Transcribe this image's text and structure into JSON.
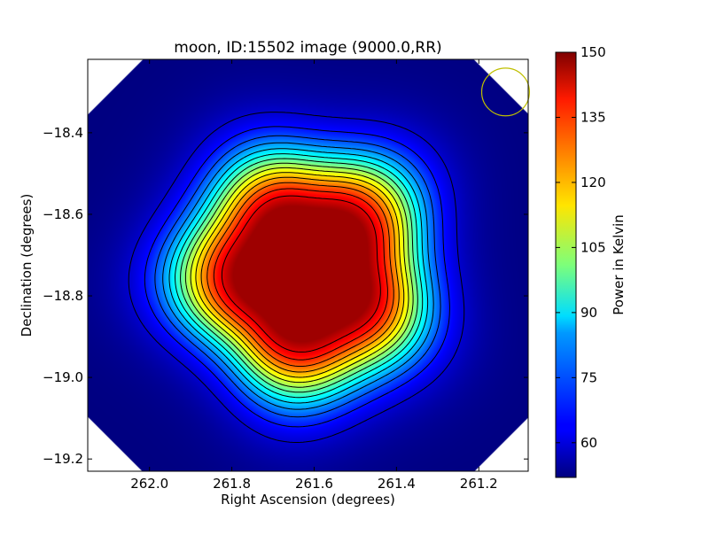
{
  "chart_data": {
    "type": "heatmap",
    "title": "moon, ID:15502 image (9000.0,RR)",
    "xlabel": "Right Ascension (degrees)",
    "ylabel": "Declination (degrees)",
    "colorbar_label": "Power in Kelvin",
    "xlim": [
      262.15,
      261.08
    ],
    "ylim": [
      -19.23,
      -18.22
    ],
    "x_inverted": true,
    "x_ticks": [
      {
        "value": 262.0,
        "label": "262.0"
      },
      {
        "value": 261.8,
        "label": "261.8"
      },
      {
        "value": 261.6,
        "label": "261.6"
      },
      {
        "value": 261.4,
        "label": "261.4"
      },
      {
        "value": 261.2,
        "label": "261.2"
      }
    ],
    "y_ticks": [
      {
        "value": -18.4,
        "label": "−18.4"
      },
      {
        "value": -18.6,
        "label": "−18.6"
      },
      {
        "value": -18.8,
        "label": "−18.8"
      },
      {
        "value": -19.0,
        "label": "−19.0"
      },
      {
        "value": -19.2,
        "label": "−19.2"
      }
    ],
    "colorbar_range": [
      52,
      150
    ],
    "colorbar_ticks": [
      {
        "value": 60,
        "label": "60"
      },
      {
        "value": 75,
        "label": "75"
      },
      {
        "value": 90,
        "label": "90"
      },
      {
        "value": 105,
        "label": "105"
      },
      {
        "value": 120,
        "label": "120"
      },
      {
        "value": 135,
        "label": "135"
      },
      {
        "value": 150,
        "label": "150"
      }
    ],
    "colormap": "jet",
    "source_center": {
      "ra": 261.62,
      "dec": -18.74
    },
    "source_peak": 150,
    "background_level": 52,
    "contour_count": 14,
    "beam_marker": {
      "ra": 261.135,
      "dec": -18.3,
      "radius_deg": 0.058,
      "color": "#bfbf00"
    },
    "grid": false
  }
}
